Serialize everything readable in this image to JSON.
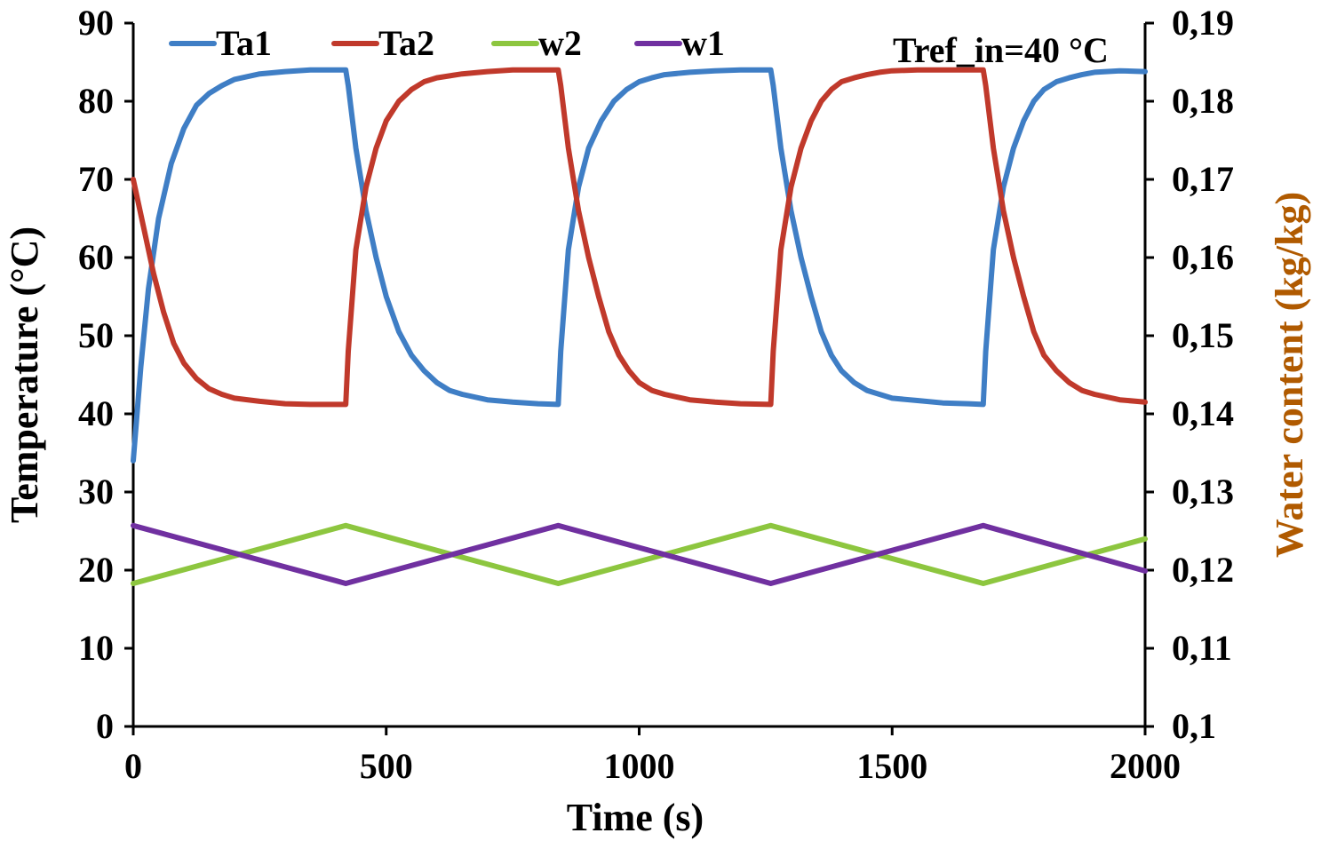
{
  "chart_data": {
    "type": "line",
    "title": "",
    "xlabel": "Time (s)",
    "ylabel": "Temperature (°C)",
    "y2label": "Water content (kg/kg)",
    "xlim": [
      0,
      2000
    ],
    "ylim": [
      0,
      90
    ],
    "y2lim": [
      0.1,
      0.19
    ],
    "x_ticks": [
      "0",
      "500",
      "1000",
      "1500",
      "2000"
    ],
    "x_tick_values": [
      0,
      500,
      1000,
      1500,
      2000
    ],
    "y_ticks": [
      "0",
      "10",
      "20",
      "30",
      "40",
      "50",
      "60",
      "70",
      "80",
      "90"
    ],
    "y_tick_values": [
      0,
      10,
      20,
      30,
      40,
      50,
      60,
      70,
      80,
      90
    ],
    "y2_ticks": [
      "0,1",
      "0,11",
      "0,12",
      "0,13",
      "0,14",
      "0,15",
      "0,16",
      "0,17",
      "0,18",
      "0,19"
    ],
    "y2_tick_values": [
      0.1,
      0.11,
      0.12,
      0.13,
      0.14,
      0.15,
      0.16,
      0.17,
      0.18,
      0.19
    ],
    "annotation": "Tref_in=40 °C",
    "legend_position": "top",
    "series": [
      {
        "name": "Ta1",
        "color": "#3f7ec5",
        "axis": "left",
        "x": [
          0,
          15,
          30,
          50,
          75,
          100,
          125,
          150,
          175,
          200,
          250,
          300,
          350,
          420,
          425,
          440,
          460,
          480,
          500,
          525,
          550,
          575,
          600,
          625,
          650,
          700,
          750,
          800,
          840,
          845,
          860,
          880,
          900,
          925,
          950,
          975,
          1000,
          1025,
          1050,
          1100,
          1150,
          1200,
          1260,
          1265,
          1280,
          1300,
          1320,
          1340,
          1360,
          1380,
          1400,
          1425,
          1450,
          1475,
          1500,
          1550,
          1600,
          1650,
          1680,
          1685,
          1700,
          1720,
          1740,
          1760,
          1780,
          1800,
          1825,
          1850,
          1875,
          1900,
          1950,
          2000
        ],
        "y": [
          34,
          46,
          56,
          65,
          72,
          76.5,
          79.5,
          81,
          82,
          82.8,
          83.5,
          83.8,
          84,
          84,
          82,
          74,
          66,
          60,
          55,
          50.5,
          47.5,
          45.5,
          44,
          43,
          42.5,
          41.8,
          41.5,
          41.3,
          41.2,
          48,
          61,
          69,
          74,
          77.5,
          80,
          81.5,
          82.5,
          83,
          83.4,
          83.7,
          83.9,
          84,
          84,
          82,
          74,
          66,
          60,
          55,
          50.5,
          47.5,
          45.5,
          44,
          43,
          42.5,
          42,
          41.7,
          41.4,
          41.3,
          41.2,
          48,
          61,
          69,
          74,
          77.5,
          80,
          81.5,
          82.5,
          83,
          83.4,
          83.7,
          83.9,
          83.8
        ]
      },
      {
        "name": "Ta2",
        "color": "#c0392b",
        "axis": "left",
        "x": [
          0,
          20,
          40,
          60,
          80,
          100,
          125,
          150,
          175,
          200,
          250,
          300,
          350,
          420,
          425,
          440,
          460,
          480,
          500,
          525,
          550,
          575,
          600,
          650,
          700,
          750,
          800,
          840,
          845,
          860,
          880,
          900,
          920,
          940,
          960,
          980,
          1000,
          1025,
          1050,
          1100,
          1150,
          1200,
          1260,
          1265,
          1280,
          1300,
          1320,
          1340,
          1360,
          1380,
          1400,
          1425,
          1450,
          1475,
          1500,
          1550,
          1600,
          1650,
          1680,
          1685,
          1700,
          1720,
          1740,
          1760,
          1780,
          1800,
          1825,
          1850,
          1875,
          1900,
          1950,
          2000
        ],
        "y": [
          70,
          64,
          58,
          53,
          49,
          46.5,
          44.5,
          43.2,
          42.5,
          42,
          41.6,
          41.3,
          41.2,
          41.2,
          48,
          61,
          69,
          74,
          77.5,
          80,
          81.5,
          82.5,
          83,
          83.5,
          83.8,
          84,
          84,
          84,
          82,
          74,
          66,
          60,
          55,
          50.5,
          47.5,
          45.5,
          44,
          43,
          42.5,
          41.8,
          41.5,
          41.3,
          41.2,
          48,
          61,
          69,
          74,
          77.5,
          80,
          81.5,
          82.5,
          83,
          83.4,
          83.7,
          83.9,
          84,
          84,
          84,
          84,
          82,
          74,
          66,
          60,
          55,
          50.5,
          47.5,
          45.5,
          44,
          43,
          42.5,
          41.8,
          41.5
        ]
      },
      {
        "name": "w2",
        "color": "#8dc63f",
        "axis": "right",
        "x": [
          0,
          420,
          840,
          1260,
          1680,
          2000
        ],
        "y": [
          0.1183,
          0.1257,
          0.1183,
          0.1257,
          0.1183,
          0.124
        ]
      },
      {
        "name": "w1",
        "color": "#7030a0",
        "axis": "right",
        "x": [
          0,
          420,
          840,
          1260,
          1680,
          2000
        ],
        "y": [
          0.1257,
          0.1183,
          0.1257,
          0.1183,
          0.1257,
          0.1199
        ]
      }
    ]
  }
}
